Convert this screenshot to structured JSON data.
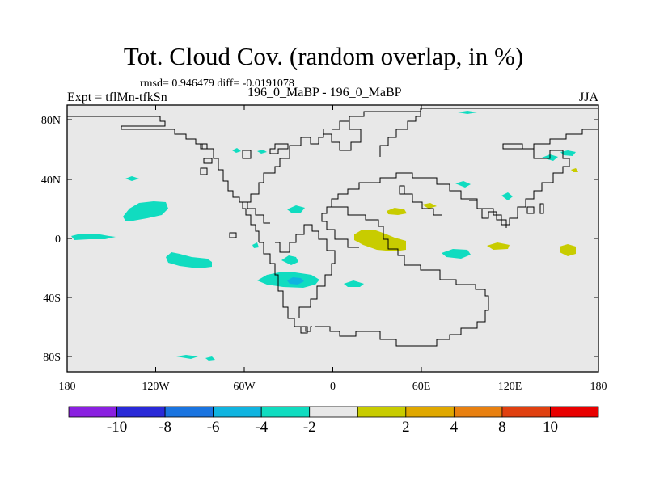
{
  "title": "Tot. Cloud Cov. (random overlap, in %)",
  "stats": "rmsd= 0.946479 diff= -0.0191078",
  "experiment": "Expt = tflMn-tfkSn",
  "case": "196_0_MaBP - 196_0_MaBP",
  "season": "JJA",
  "map": {
    "background_color": "#e8e8e8",
    "lat_ticks": [
      "80N",
      "40N",
      "0",
      "40S",
      "80S"
    ],
    "lon_ticks": [
      "180",
      "120W",
      "60W",
      "0",
      "60E",
      "120E",
      "180"
    ]
  },
  "colorbar": {
    "colors": [
      "#8a20e0",
      "#2a2ad8",
      "#1a74e0",
      "#10b4e0",
      "#10dcc0",
      "#e8e8e8",
      "#c8cc00",
      "#e0a800",
      "#e88010",
      "#e04010",
      "#e80000"
    ],
    "labels": [
      "-10",
      "-8",
      "-6",
      "-4",
      "-2",
      "2",
      "4",
      "8",
      "10"
    ]
  }
}
